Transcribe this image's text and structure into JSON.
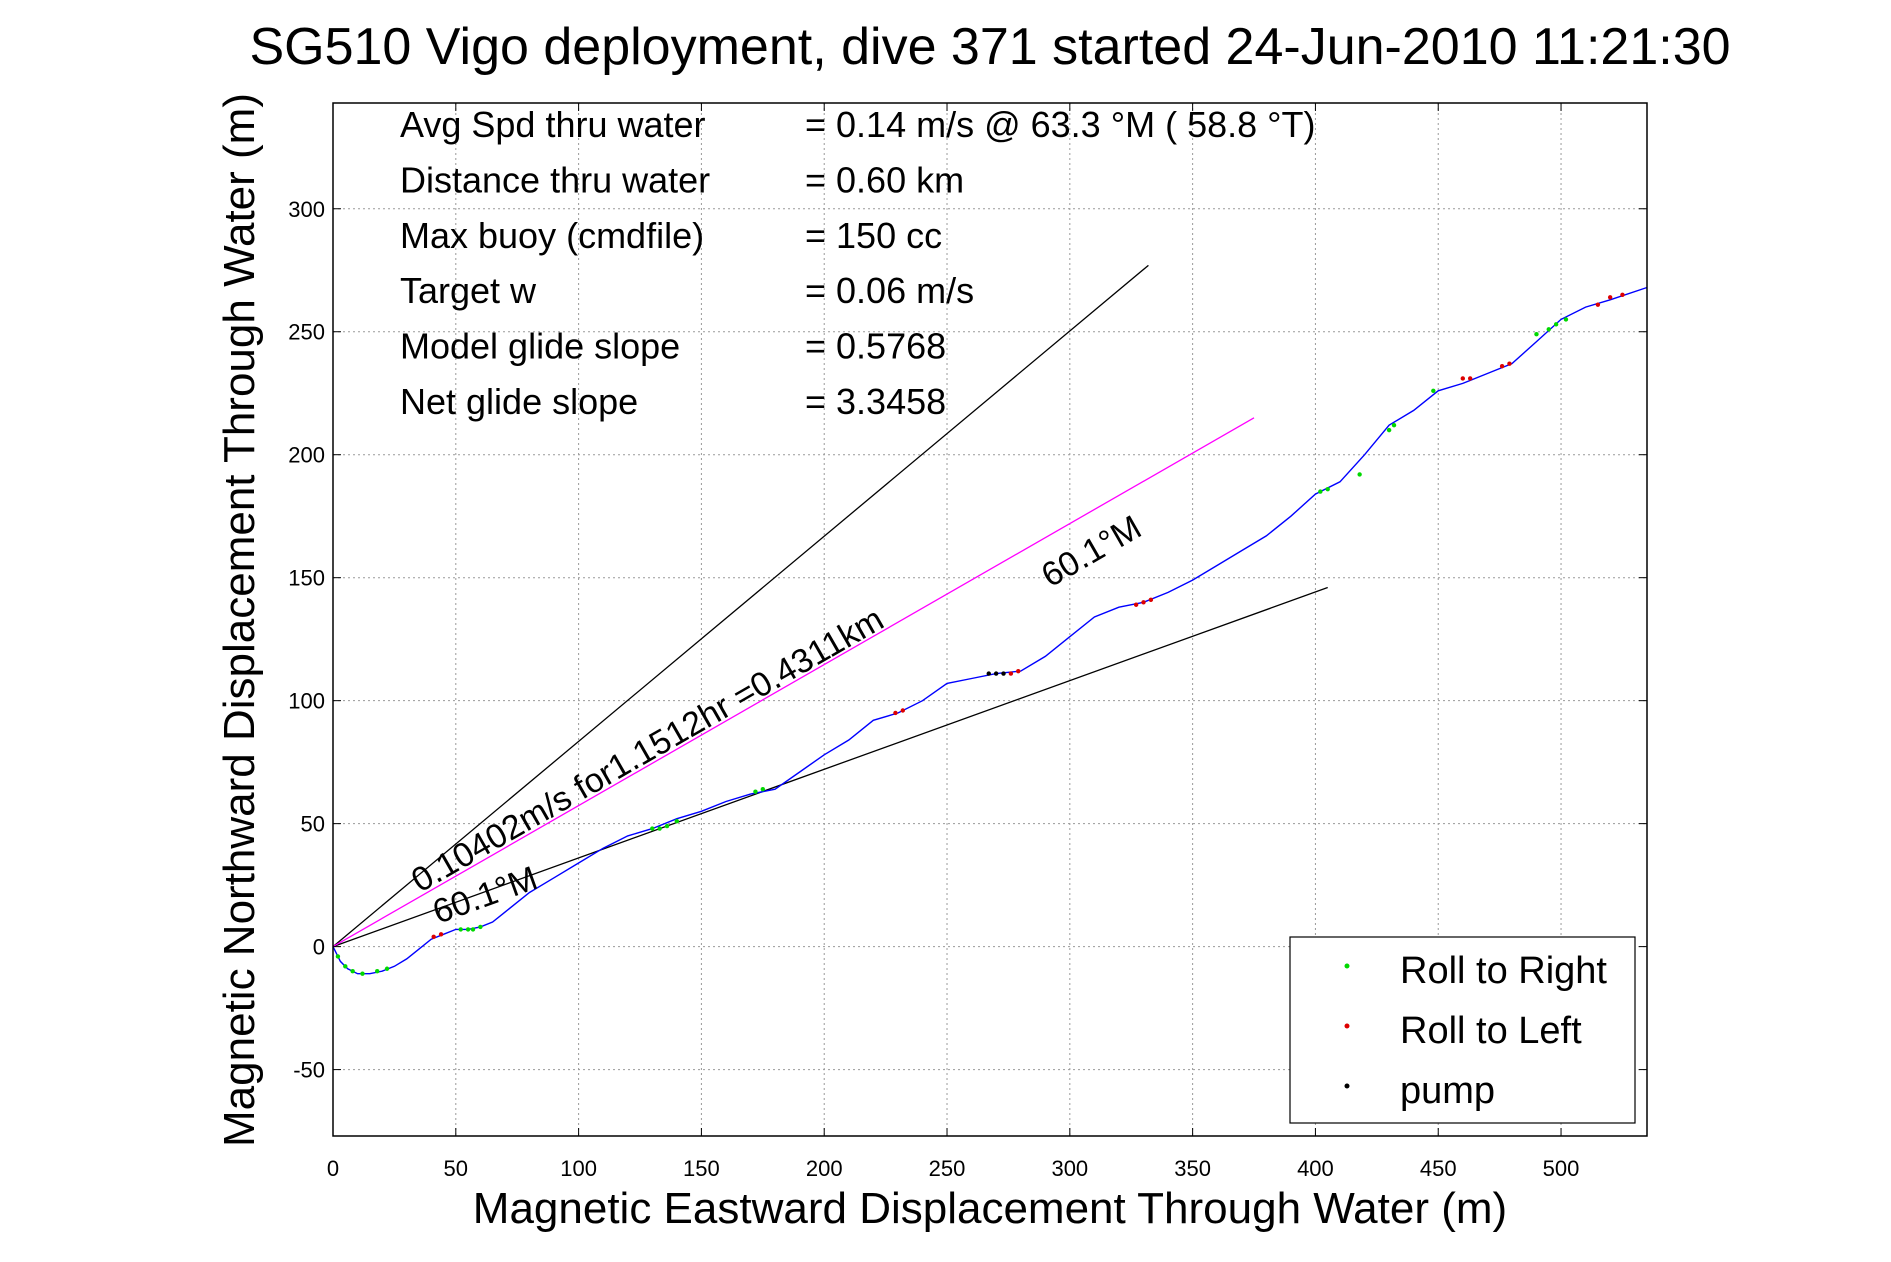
{
  "chart_data": {
    "type": "line",
    "title": "SG510 Vigo deployment, dive 371 started 24-Jun-2010 11:21:30",
    "xlabel": "Magnetic Eastward Displacement Through Water (m)",
    "ylabel": "Magnetic Northward Displacement Through Water (m)",
    "xlim": [
      0,
      535
    ],
    "ylim": [
      -77,
      343
    ],
    "xticks": [
      0,
      50,
      100,
      150,
      200,
      250,
      300,
      350,
      400,
      450,
      500
    ],
    "yticks": [
      -50,
      0,
      50,
      100,
      150,
      200,
      250,
      300
    ],
    "grid": true,
    "legend_position": "bottom-right",
    "stats": [
      {
        "label": "Avg Spd thru water",
        "value": "=  0.14 m/s @  63.3 °M ( 58.8 °T)"
      },
      {
        "label": "Distance thru water",
        "value": "=  0.60 km"
      },
      {
        "label": "Max buoy (cmdfile)",
        "value": "= 150 cc"
      },
      {
        "label": "Target w",
        "value": "= 0.06 m/s"
      },
      {
        "label": "Model glide slope",
        "value": "= 0.5768"
      },
      {
        "label": "Net glide slope",
        "value": "= 3.3458"
      }
    ],
    "annotations": {
      "current": "0.10402m/s for1.1512hr =0.4311km",
      "heading_lower": "60.1°M",
      "heading_upper": "60.1°M"
    },
    "reference_lines": [
      {
        "name": "glide-envelope-upper",
        "color": "#000000",
        "x": [
          0,
          332
        ],
        "y": [
          0,
          277
        ]
      },
      {
        "name": "glide-envelope-lower",
        "color": "#000000",
        "x": [
          0,
          405
        ],
        "y": [
          0,
          146
        ]
      },
      {
        "name": "current-vector",
        "color": "#ff00ff",
        "x": [
          0,
          375
        ],
        "y": [
          0,
          215
        ]
      }
    ],
    "series": [
      {
        "name": "",
        "color": "#0000ff",
        "x": [
          0,
          3,
          6,
          10,
          15,
          20,
          25,
          30,
          35,
          40,
          45,
          50,
          55,
          60,
          65,
          70,
          75,
          80,
          90,
          100,
          110,
          120,
          130,
          140,
          150,
          160,
          170,
          180,
          190,
          200,
          210,
          220,
          230,
          240,
          250,
          260,
          270,
          280,
          290,
          300,
          310,
          320,
          330,
          340,
          350,
          360,
          370,
          380,
          390,
          400,
          410,
          420,
          430,
          440,
          450,
          460,
          470,
          480,
          490,
          500,
          510,
          520,
          535
        ],
        "y": [
          0,
          -6,
          -9,
          -11,
          -11,
          -10,
          -8,
          -5,
          -1,
          3,
          5,
          7,
          7,
          8,
          10,
          14,
          18,
          22,
          28,
          34,
          40,
          45,
          48,
          52,
          55,
          59,
          62,
          64,
          71,
          78,
          84,
          92,
          95,
          100,
          107,
          109,
          111,
          112,
          118,
          126,
          134,
          138,
          140,
          144,
          149,
          155,
          161,
          167,
          175,
          184,
          189,
          200,
          212,
          218,
          226,
          229,
          233,
          237,
          246,
          255,
          260,
          263,
          268
        ]
      }
    ],
    "markers": [
      {
        "name": "Roll to Right",
        "color": "#00d800",
        "points": [
          [
            2,
            -4
          ],
          [
            5,
            -8
          ],
          [
            8,
            -10
          ],
          [
            12,
            -11
          ],
          [
            18,
            -10
          ],
          [
            22,
            -9
          ],
          [
            52,
            7
          ],
          [
            55,
            7
          ],
          [
            57,
            7
          ],
          [
            60,
            8
          ],
          [
            130,
            48
          ],
          [
            133,
            48
          ],
          [
            136,
            49
          ],
          [
            140,
            51
          ],
          [
            172,
            63
          ],
          [
            175,
            64
          ],
          [
            402,
            185
          ],
          [
            405,
            186
          ],
          [
            418,
            192
          ],
          [
            430,
            210
          ],
          [
            432,
            212
          ],
          [
            448,
            226
          ],
          [
            490,
            249
          ],
          [
            495,
            251
          ],
          [
            498,
            253
          ],
          [
            502,
            255
          ]
        ]
      },
      {
        "name": "Roll to Left",
        "color": "#dd0000",
        "points": [
          [
            41,
            4
          ],
          [
            44,
            5
          ],
          [
            229,
            95
          ],
          [
            232,
            96
          ],
          [
            276,
            111
          ],
          [
            279,
            112
          ],
          [
            327,
            139
          ],
          [
            330,
            140
          ],
          [
            333,
            141
          ],
          [
            460,
            231
          ],
          [
            463,
            231
          ],
          [
            476,
            236
          ],
          [
            479,
            237
          ],
          [
            515,
            261
          ],
          [
            520,
            264
          ],
          [
            525,
            265
          ]
        ]
      },
      {
        "name": "pump",
        "color": "#000000",
        "points": [
          [
            267,
            111
          ],
          [
            270,
            111
          ],
          [
            273,
            111
          ]
        ]
      }
    ]
  }
}
